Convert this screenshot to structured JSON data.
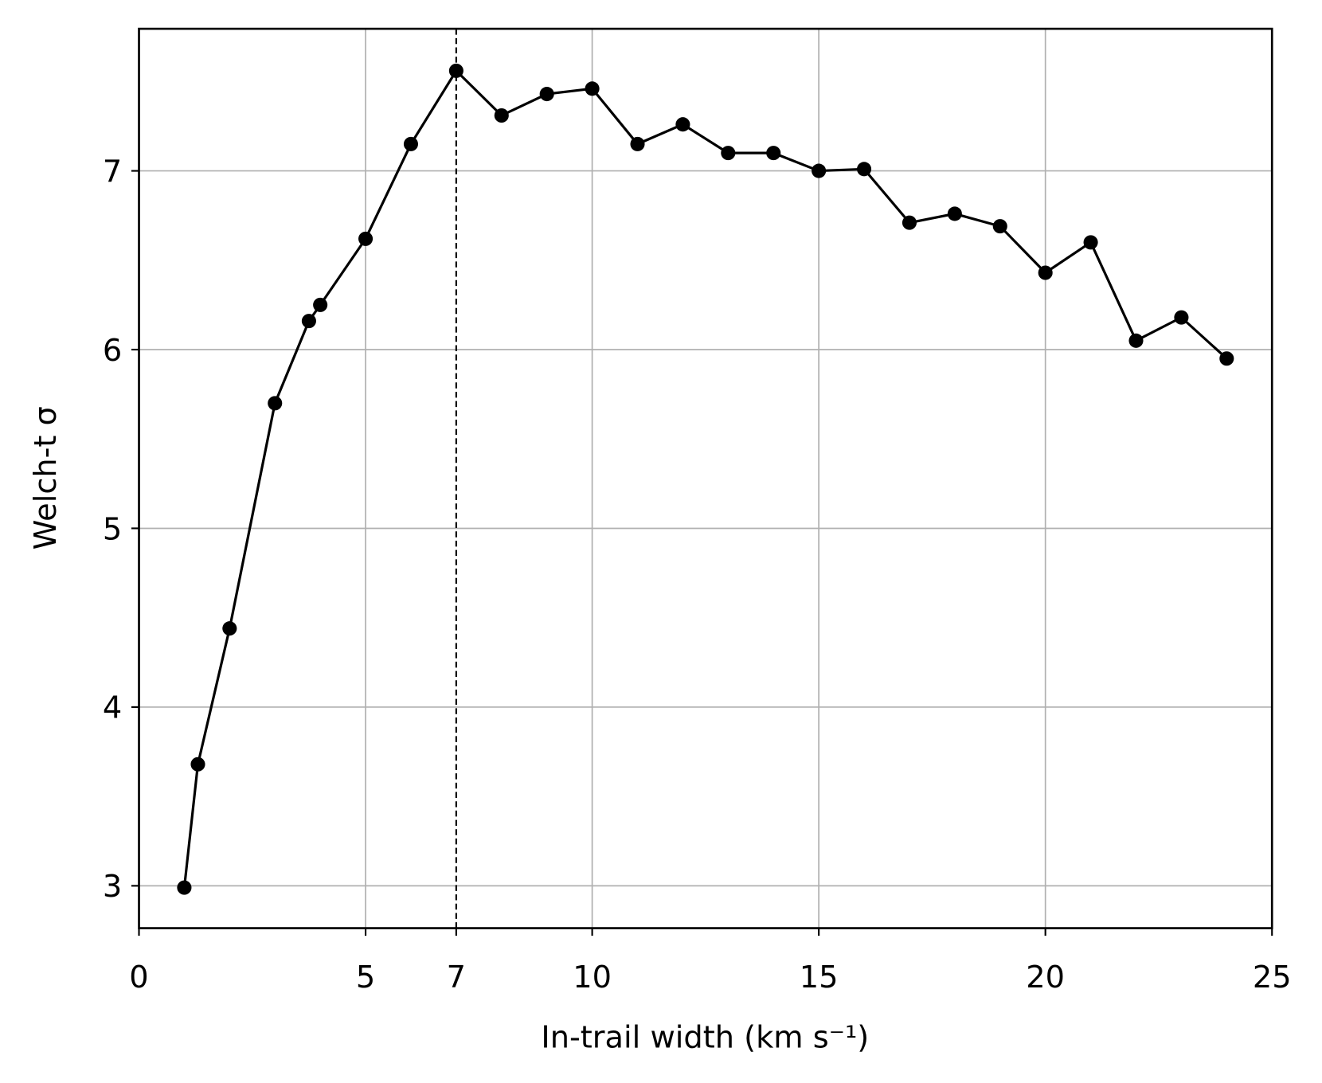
{
  "chart_data": {
    "type": "line",
    "xlabel": "In-trail width (km s⁻¹)",
    "ylabel": "Welch-t σ",
    "x": [
      1,
      1.3,
      2,
      3,
      3.75,
      4,
      5,
      6,
      7,
      8,
      9,
      10,
      11,
      12,
      13,
      14,
      15,
      16,
      17,
      18,
      19,
      20,
      21,
      22,
      23,
      24
    ],
    "series": [
      {
        "color": "#000000",
        "values": [
          2.99,
          3.68,
          4.44,
          5.7,
          6.16,
          6.25,
          6.62,
          7.15,
          7.56,
          7.31,
          7.43,
          7.46,
          7.15,
          7.26,
          7.1,
          7.1,
          7.0,
          7.01,
          6.71,
          6.76,
          6.69,
          6.43,
          6.6,
          6.05,
          6.18,
          5.95
        ]
      }
    ],
    "vline": 7,
    "xlim": [
      0,
      25
    ],
    "xticks": [
      0,
      5,
      7,
      10,
      15,
      20,
      25
    ],
    "ylim": [
      2.763,
      7.795
    ],
    "yticks": [
      3,
      4,
      5,
      6,
      7
    ],
    "grid": true
  }
}
